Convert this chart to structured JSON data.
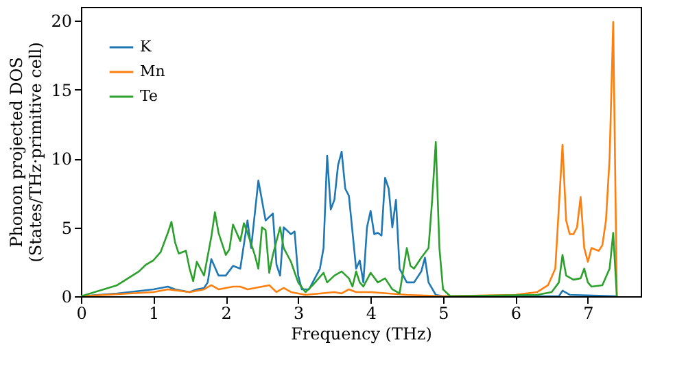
{
  "chart_data": {
    "type": "line",
    "xlabel": "Frequency (THz)",
    "ylabel": "Phonon projected DOS\n(States/THz·primitive cell)",
    "xlim": [
      0,
      7.73
    ],
    "ylim": [
      0,
      21
    ],
    "xticks": [
      0,
      1,
      2,
      3,
      4,
      5,
      6,
      7
    ],
    "yticks": [
      0,
      5,
      10,
      15,
      20
    ],
    "grid": false,
    "legend": "top left",
    "line_style": "solid",
    "marker": "none",
    "series": [
      {
        "name": "K",
        "color": "#1f77b4",
        "x": [
          0,
          0.5,
          1.0,
          1.2,
          1.3,
          1.5,
          1.6,
          1.7,
          1.75,
          1.8,
          1.9,
          2.0,
          2.1,
          2.2,
          2.3,
          2.35,
          2.45,
          2.55,
          2.65,
          2.7,
          2.75,
          2.8,
          2.9,
          2.95,
          3.0,
          3.05,
          3.15,
          3.3,
          3.35,
          3.4,
          3.45,
          3.5,
          3.55,
          3.6,
          3.65,
          3.7,
          3.8,
          3.85,
          3.9,
          3.95,
          4.0,
          4.05,
          4.1,
          4.15,
          4.2,
          4.25,
          4.3,
          4.35,
          4.4,
          4.5,
          4.6,
          4.7,
          4.75,
          4.8,
          4.9,
          5.0,
          6.6,
          6.65,
          6.75,
          7.4
        ],
        "values": [
          0,
          0.2,
          0.5,
          0.7,
          0.5,
          0.3,
          0.5,
          0.6,
          1.0,
          2.7,
          1.5,
          1.5,
          2.2,
          2.0,
          5.5,
          3.5,
          8.4,
          5.5,
          6.0,
          2.3,
          1.5,
          5.0,
          4.5,
          4.7,
          1.5,
          0.5,
          0.5,
          2.0,
          3.5,
          10.2,
          6.3,
          7.0,
          9.5,
          10.5,
          7.8,
          7.3,
          2.0,
          2.6,
          1.0,
          5.0,
          6.2,
          4.5,
          4.6,
          4.4,
          8.6,
          7.8,
          5.0,
          7.0,
          2.0,
          1.0,
          1.0,
          1.8,
          2.8,
          1.0,
          0.1,
          0,
          0,
          0.4,
          0.1,
          0
        ]
      },
      {
        "name": "Mn",
        "color": "#ff7f0e",
        "x": [
          0,
          1.0,
          1.2,
          1.5,
          1.7,
          1.8,
          1.9,
          2.0,
          2.1,
          2.2,
          2.3,
          2.4,
          2.6,
          2.7,
          2.8,
          2.9,
          3.1,
          3.3,
          3.5,
          3.6,
          3.7,
          3.8,
          4.0,
          4.5,
          5.0,
          6.0,
          6.3,
          6.45,
          6.55,
          6.65,
          6.7,
          6.75,
          6.8,
          6.85,
          6.9,
          6.95,
          7.0,
          7.05,
          7.15,
          7.2,
          7.25,
          7.3,
          7.35,
          7.4
        ],
        "values": [
          0,
          0.3,
          0.5,
          0.3,
          0.5,
          0.8,
          0.5,
          0.6,
          0.7,
          0.7,
          0.5,
          0.6,
          0.8,
          0.3,
          0.6,
          0.3,
          0.1,
          0.2,
          0.3,
          0.2,
          0.5,
          0.3,
          0.3,
          0.1,
          0,
          0.1,
          0.3,
          0.8,
          2.0,
          11.0,
          5.5,
          4.5,
          4.5,
          5.0,
          7.2,
          3.5,
          2.5,
          3.5,
          3.3,
          3.7,
          5.5,
          10.0,
          19.9,
          0
        ]
      },
      {
        "name": "Te",
        "color": "#2ca02c",
        "x": [
          0,
          0.5,
          0.8,
          0.9,
          1.0,
          1.1,
          1.2,
          1.25,
          1.3,
          1.35,
          1.45,
          1.5,
          1.55,
          1.6,
          1.7,
          1.8,
          1.85,
          1.9,
          2.0,
          2.05,
          2.1,
          2.2,
          2.25,
          2.3,
          2.4,
          2.45,
          2.5,
          2.55,
          2.6,
          2.65,
          2.75,
          2.8,
          2.9,
          3.0,
          3.1,
          3.2,
          3.35,
          3.4,
          3.5,
          3.6,
          3.7,
          3.75,
          3.8,
          3.85,
          3.9,
          4.0,
          4.1,
          4.2,
          4.3,
          4.4,
          4.5,
          4.55,
          4.6,
          4.7,
          4.8,
          4.85,
          4.9,
          4.95,
          5.0,
          5.1,
          6.3,
          6.5,
          6.6,
          6.65,
          6.7,
          6.8,
          6.9,
          6.95,
          7.0,
          7.05,
          7.2,
          7.3,
          7.35,
          7.4
        ],
        "values": [
          0,
          0.8,
          1.8,
          2.3,
          2.6,
          3.2,
          4.6,
          5.4,
          3.9,
          3.1,
          3.3,
          2.0,
          1.1,
          2.5,
          1.5,
          4.3,
          6.1,
          4.6,
          3.0,
          3.4,
          5.2,
          4.0,
          5.3,
          4.6,
          3.0,
          2.0,
          5.0,
          4.8,
          1.7,
          3.0,
          5.0,
          3.5,
          2.5,
          1.0,
          0.3,
          0.8,
          1.7,
          1.0,
          1.5,
          1.8,
          1.3,
          0.7,
          1.8,
          1.0,
          0.7,
          1.7,
          1.0,
          1.3,
          0.5,
          0.2,
          3.5,
          2.2,
          2.0,
          2.8,
          3.5,
          7.0,
          11.2,
          3.5,
          0.5,
          0,
          0.1,
          0.3,
          1.0,
          3.0,
          1.5,
          1.2,
          1.3,
          2.0,
          1.0,
          0.7,
          0.8,
          2.0,
          4.6,
          0
        ]
      }
    ]
  }
}
